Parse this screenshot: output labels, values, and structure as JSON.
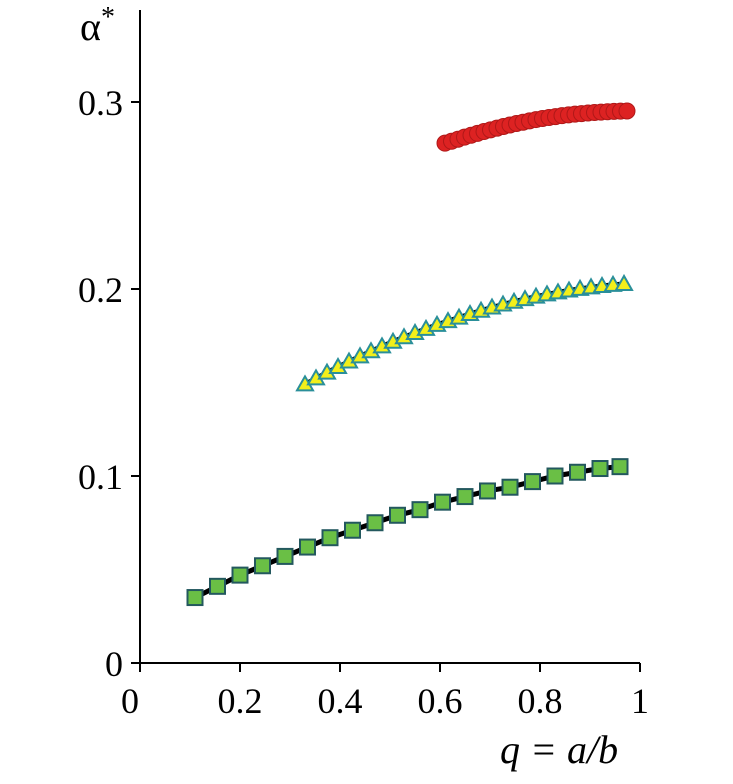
{
  "chart_data": {
    "type": "scatter",
    "xlabel": "q = a/b",
    "ylabel": "α*",
    "xlim": [
      0,
      1
    ],
    "ylim": [
      0,
      0.35
    ],
    "xticks": [
      "0",
      "0.2",
      "0.4",
      "0.6",
      "0.8",
      "1"
    ],
    "yticks": [
      "0",
      "0.1",
      "0.2",
      "0.3"
    ],
    "grid": false,
    "legend": "none",
    "series": [
      {
        "marker": "circle",
        "color": "#dd2222",
        "line": false,
        "x": [
          0.61,
          0.623,
          0.636,
          0.649,
          0.662,
          0.675,
          0.688,
          0.701,
          0.714,
          0.727,
          0.74,
          0.753,
          0.766,
          0.779,
          0.792,
          0.805,
          0.818,
          0.831,
          0.844,
          0.857,
          0.87,
          0.883,
          0.896,
          0.909,
          0.922,
          0.935,
          0.948,
          0.961,
          0.974
        ],
        "y": [
          0.278,
          0.279,
          0.2801,
          0.2812,
          0.2822,
          0.2832,
          0.2842,
          0.2851,
          0.286,
          0.2869,
          0.2877,
          0.2885,
          0.2892,
          0.2899,
          0.2906,
          0.2912,
          0.2917,
          0.2922,
          0.2927,
          0.2931,
          0.2935,
          0.2938,
          0.2941,
          0.2944,
          0.2946,
          0.2948,
          0.295,
          0.2951,
          0.2952
        ]
      },
      {
        "marker": "triangle",
        "color": "#f2ef1a",
        "edge_color": "#2a8f9a",
        "line": true,
        "x": [
          0.33,
          0.352,
          0.374,
          0.396,
          0.418,
          0.44,
          0.462,
          0.484,
          0.506,
          0.528,
          0.55,
          0.572,
          0.594,
          0.616,
          0.638,
          0.66,
          0.682,
          0.704,
          0.726,
          0.748,
          0.77,
          0.792,
          0.814,
          0.836,
          0.858,
          0.88,
          0.902,
          0.924,
          0.946,
          0.968
        ],
        "y": [
          0.149,
          0.1522,
          0.1553,
          0.1583,
          0.1612,
          0.164,
          0.1667,
          0.1693,
          0.1718,
          0.1742,
          0.1765,
          0.1787,
          0.1808,
          0.1828,
          0.1847,
          0.1866,
          0.1884,
          0.1901,
          0.1917,
          0.1932,
          0.1946,
          0.1959,
          0.1971,
          0.1982,
          0.1992,
          0.2001,
          0.2009,
          0.2016,
          0.2022,
          0.2027
        ]
      },
      {
        "marker": "square",
        "color": "#6abf45",
        "edge_color": "#23585e",
        "line": true,
        "x": [
          0.11,
          0.155,
          0.2,
          0.245,
          0.29,
          0.335,
          0.38,
          0.425,
          0.47,
          0.515,
          0.56,
          0.605,
          0.65,
          0.695,
          0.74,
          0.785,
          0.83,
          0.875,
          0.92,
          0.96
        ],
        "y": [
          0.035,
          0.041,
          0.047,
          0.052,
          0.057,
          0.062,
          0.067,
          0.071,
          0.075,
          0.079,
          0.082,
          0.086,
          0.089,
          0.092,
          0.094,
          0.097,
          0.1,
          0.102,
          0.104,
          0.105
        ]
      }
    ]
  }
}
